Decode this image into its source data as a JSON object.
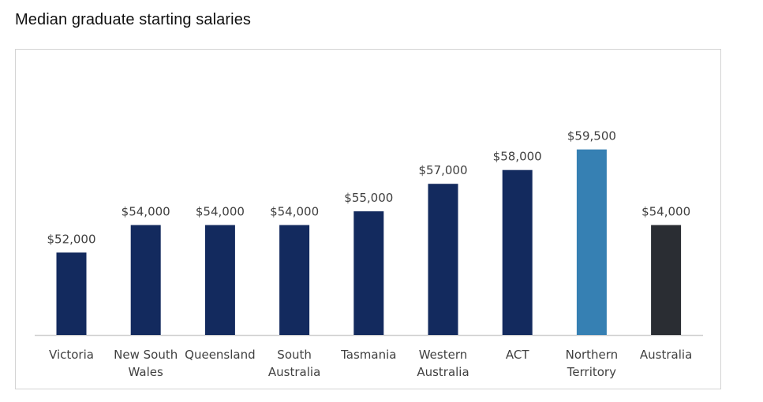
{
  "chart_data": {
    "type": "bar",
    "title": "Median graduate starting salaries",
    "xlabel": "",
    "ylabel": "",
    "ylim": [
      46000,
      62000
    ],
    "grid": false,
    "legend": "none",
    "categories": [
      [
        "Victoria"
      ],
      [
        "New South",
        "Wales"
      ],
      [
        "Queensland"
      ],
      [
        "South",
        "Australia"
      ],
      [
        "Tasmania"
      ],
      [
        "Western",
        "Australia"
      ],
      [
        "ACT"
      ],
      [
        "Northern",
        "Territory"
      ],
      [
        "Australia"
      ]
    ],
    "values": [
      52000,
      54000,
      54000,
      54000,
      55000,
      57000,
      58000,
      59500,
      54000
    ],
    "value_labels": [
      "$52,000",
      "$54,000",
      "$54,000",
      "$54,000",
      "$55,000",
      "$57,000",
      "$58,000",
      "$59,500",
      "$54,000"
    ],
    "bar_colors": [
      "#132a5e",
      "#132a5e",
      "#132a5e",
      "#132a5e",
      "#132a5e",
      "#132a5e",
      "#132a5e",
      "#3680b3",
      "#2a2d33"
    ]
  }
}
